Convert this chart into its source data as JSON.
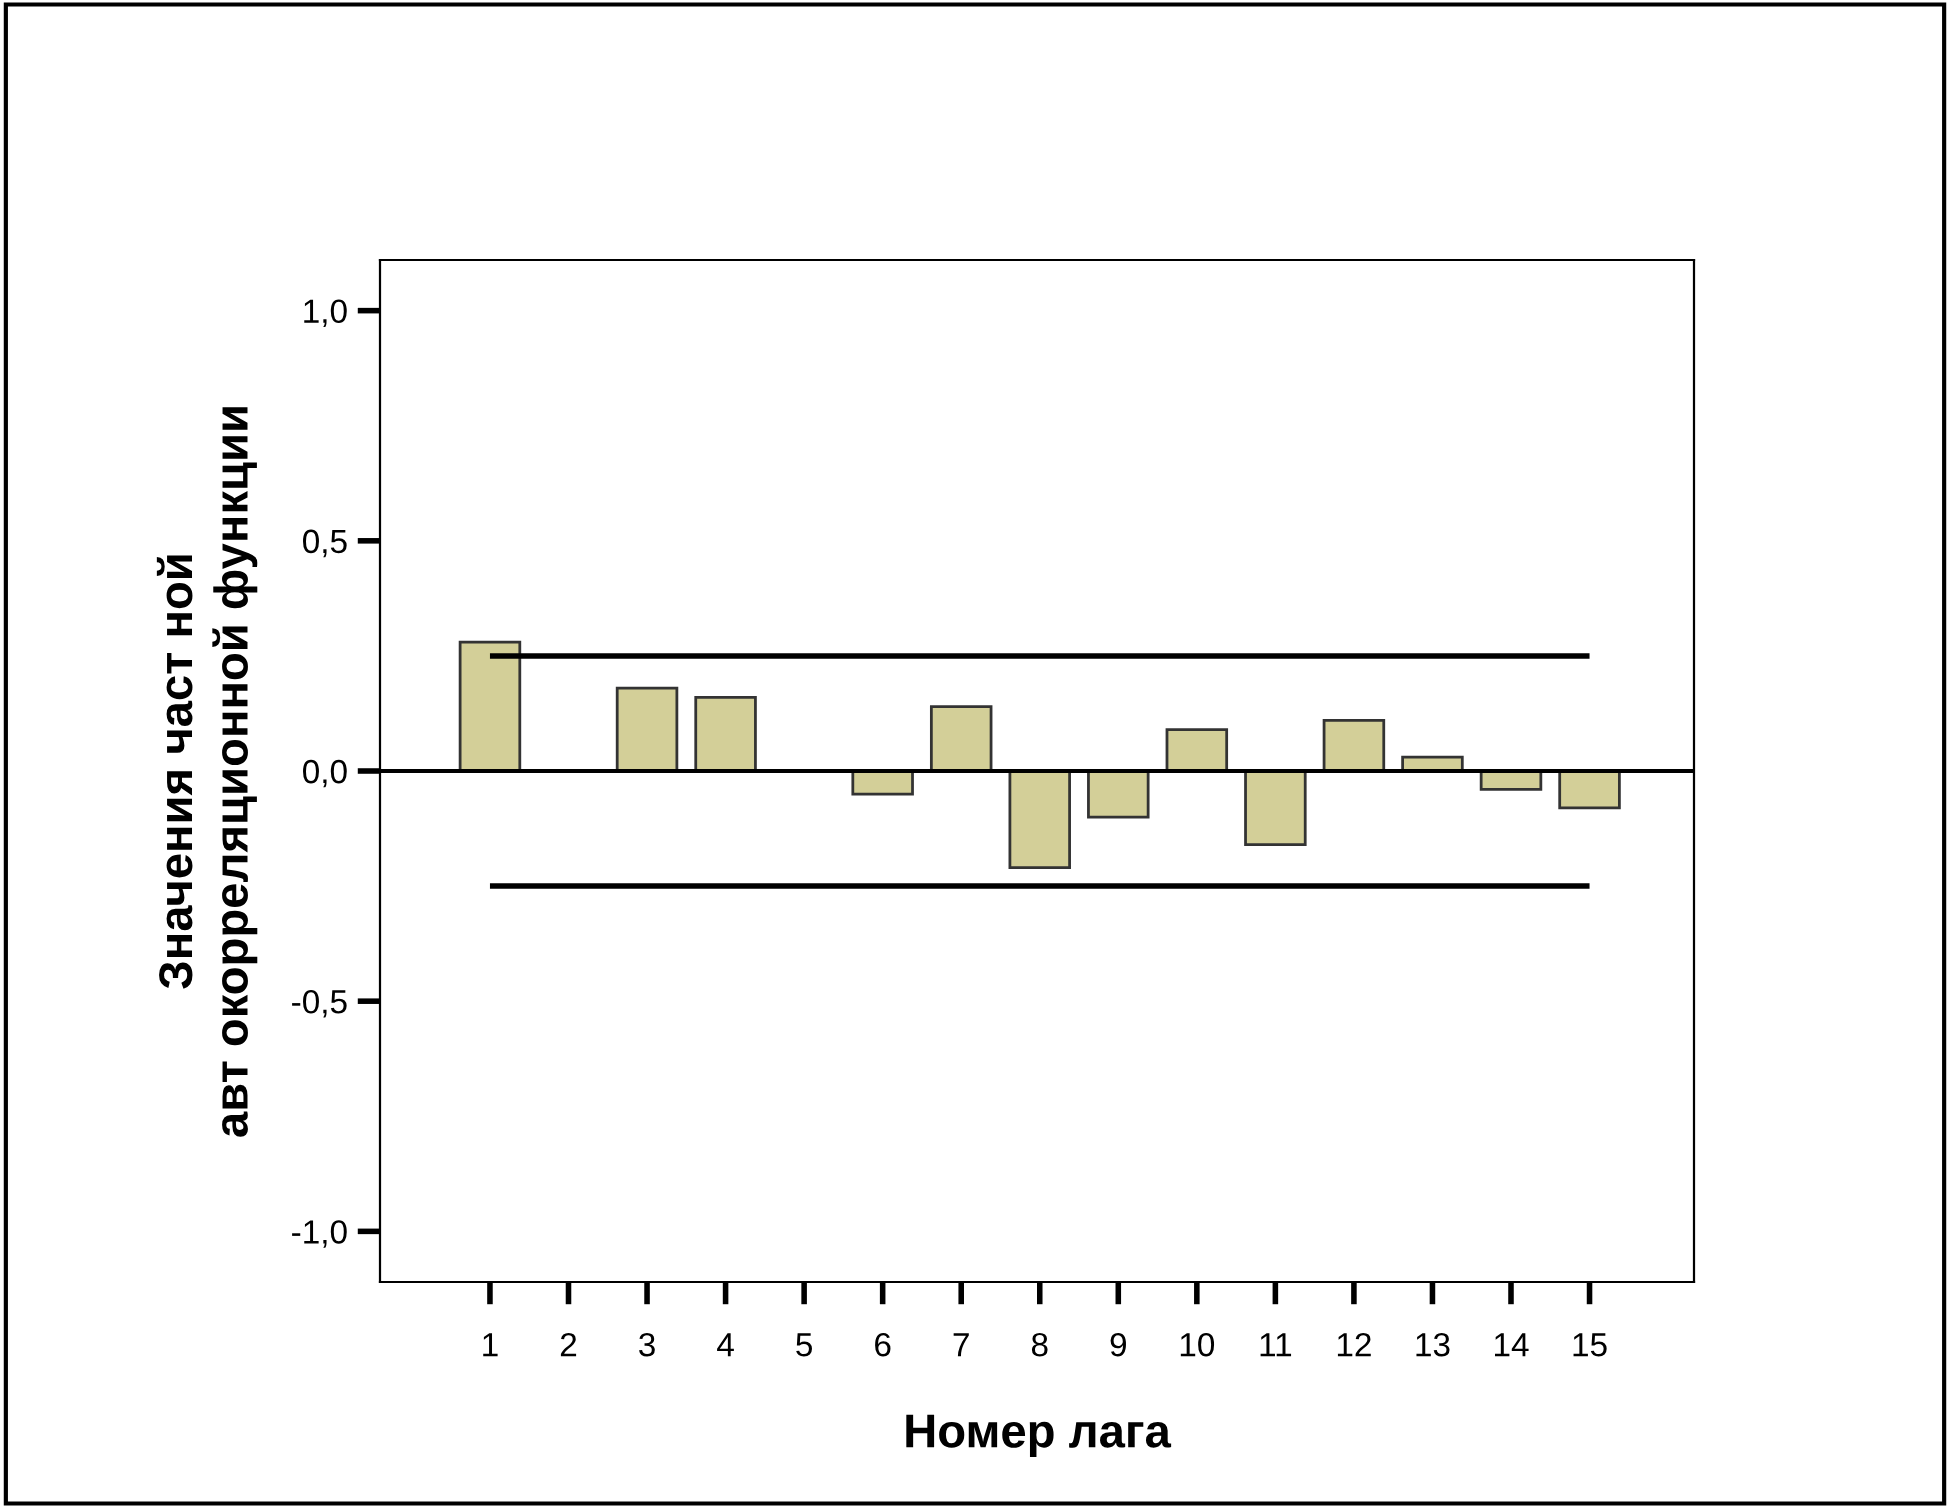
{
  "chart_data": {
    "type": "bar",
    "xlabel": "Номер лага",
    "ylabel": "Значения част ной\nавт окорреляционной функции",
    "categories": [
      "1",
      "2",
      "3",
      "4",
      "5",
      "6",
      "7",
      "8",
      "9",
      "10",
      "11",
      "12",
      "13",
      "14",
      "15"
    ],
    "values": [
      0.28,
      null,
      0.18,
      0.16,
      0.0,
      -0.05,
      0.14,
      -0.21,
      -0.1,
      0.09,
      -0.16,
      0.11,
      0.03,
      -0.04,
      -0.08
    ],
    "color": "#d3cf98",
    "ylim": [
      -1.11,
      1.11
    ],
    "yticks": [
      {
        "value": -1.0,
        "label": "-1,0"
      },
      {
        "value": -0.5,
        "label": "-0,5"
      },
      {
        "value": 0.0,
        "label": "0,0"
      },
      {
        "value": 0.5,
        "label": "0,5"
      },
      {
        "value": 1.0,
        "label": "1,0"
      }
    ],
    "ref_lines": [
      {
        "axis": "y",
        "value": 0.25,
        "color": "#000000"
      },
      {
        "axis": "y",
        "value": -0.25,
        "color": "#000000"
      }
    ],
    "legend": false
  }
}
